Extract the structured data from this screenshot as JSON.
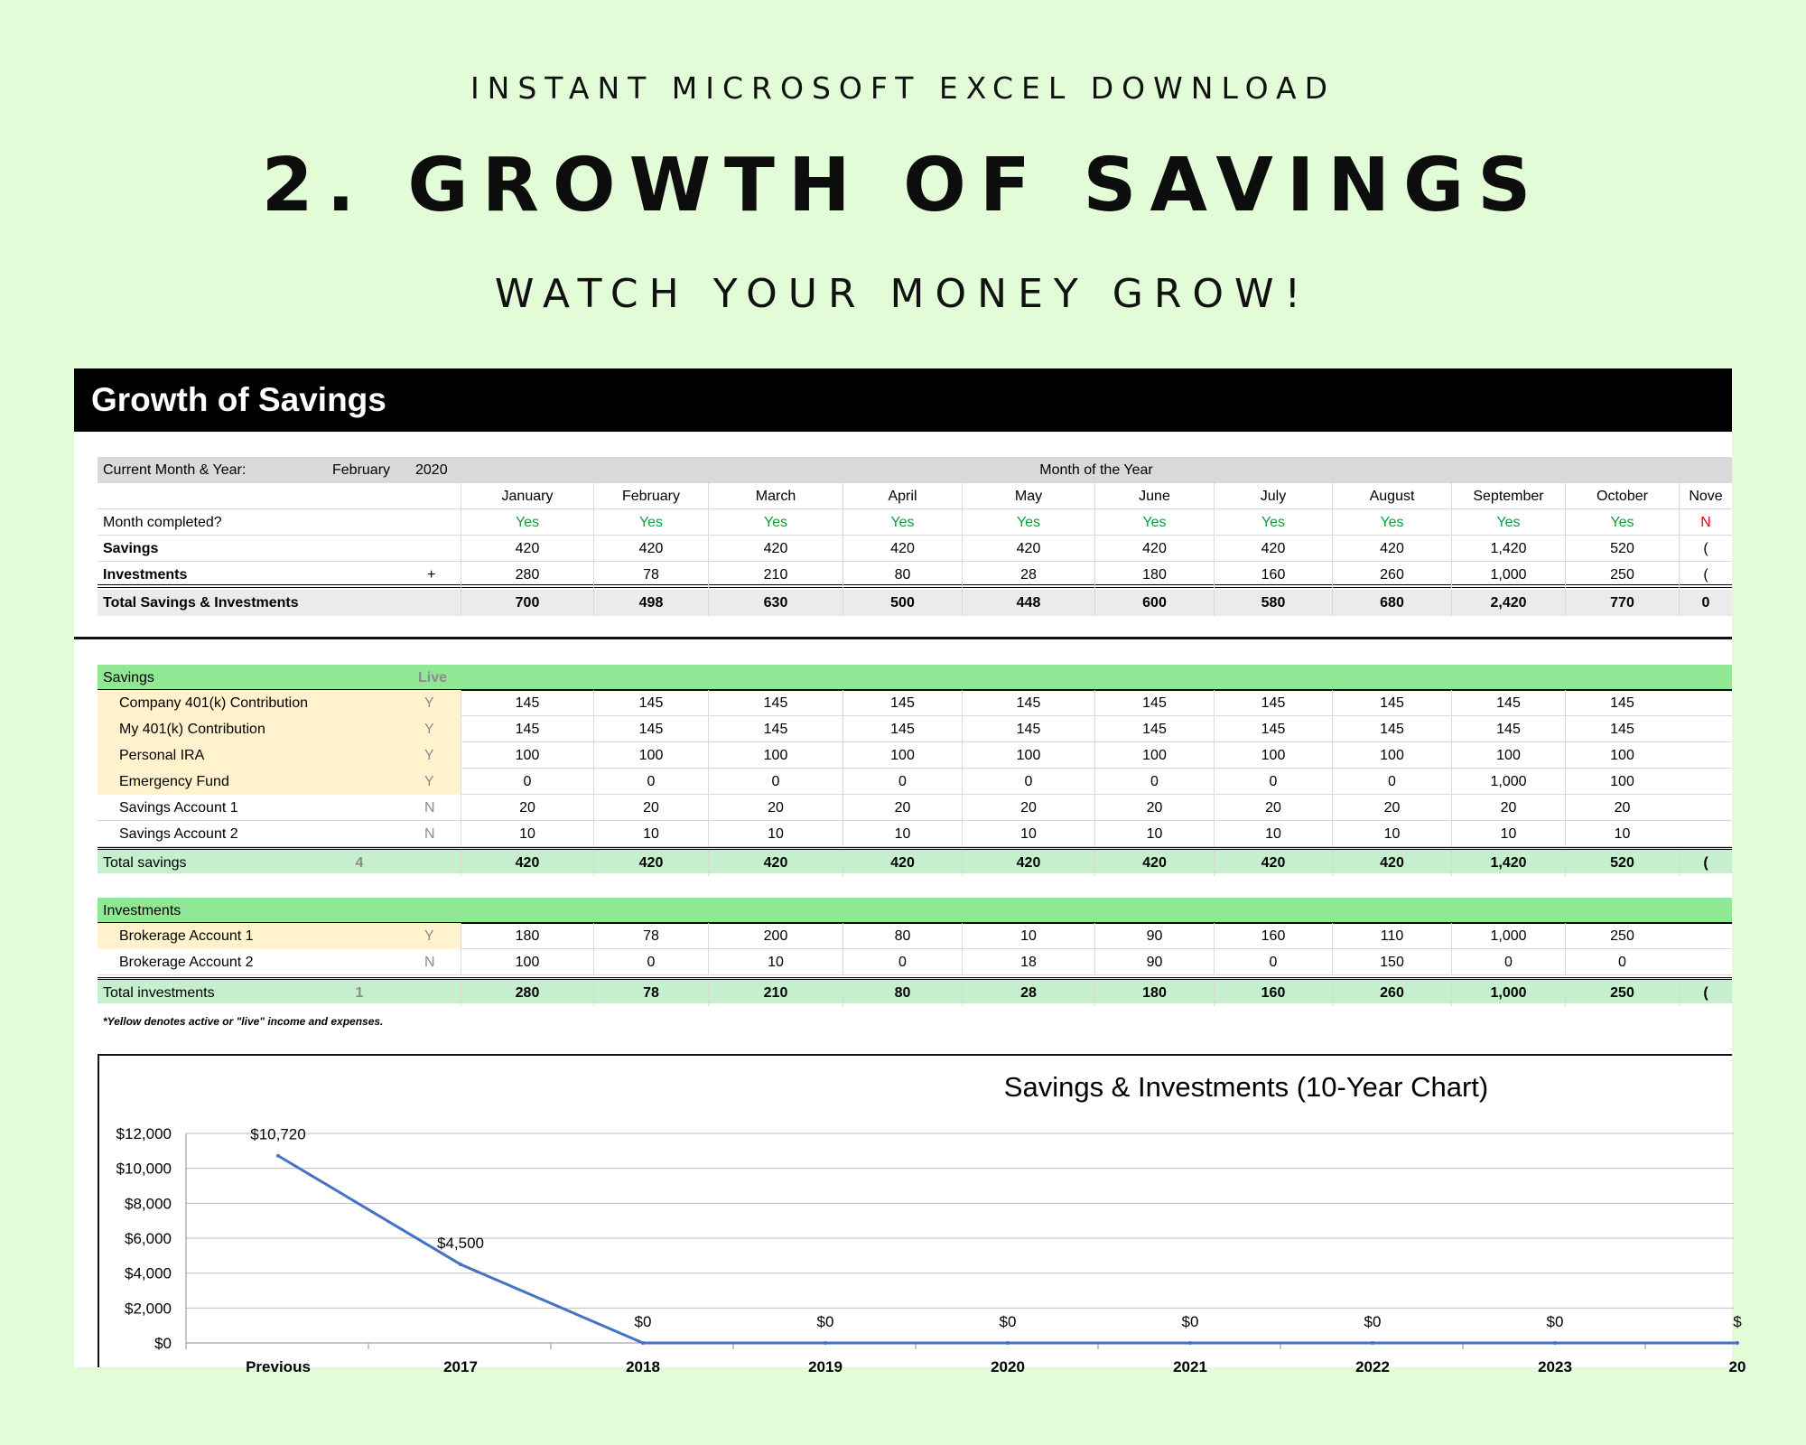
{
  "hero": {
    "kicker": "INSTANT MICROSOFT EXCEL DOWNLOAD",
    "title": "2. GROWTH OF SAVINGS",
    "subtitle": "WATCH YOUR MONEY GROW!"
  },
  "sheet": {
    "title": "Growth of Savings",
    "current_label": "Current Month & Year:",
    "current_month": "February",
    "current_year": "2020",
    "month_group_label": "Month of the Year",
    "months": [
      "January",
      "February",
      "March",
      "April",
      "May",
      "June",
      "July",
      "August",
      "September",
      "October",
      "Nove"
    ],
    "summary": {
      "completed_label": "Month completed?",
      "completed": [
        "Yes",
        "Yes",
        "Yes",
        "Yes",
        "Yes",
        "Yes",
        "Yes",
        "Yes",
        "Yes",
        "Yes",
        "N"
      ],
      "savings_label": "Savings",
      "savings": [
        "420",
        "420",
        "420",
        "420",
        "420",
        "420",
        "420",
        "420",
        "1,420",
        "520",
        "("
      ],
      "investments_label": "Investments",
      "investments_sign": "+",
      "investments": [
        "280",
        "78",
        "210",
        "80",
        "28",
        "180",
        "160",
        "260",
        "1,000",
        "250",
        "("
      ],
      "total_label": "Total Savings & Investments",
      "total": [
        "700",
        "498",
        "630",
        "500",
        "448",
        "600",
        "580",
        "680",
        "2,420",
        "770",
        "0"
      ]
    },
    "savings_section": {
      "label": "Savings",
      "live_label": "Live",
      "rows": [
        {
          "name": "Company 401(k) Contribution",
          "live": "Y",
          "values": [
            "145",
            "145",
            "145",
            "145",
            "145",
            "145",
            "145",
            "145",
            "145",
            "145"
          ]
        },
        {
          "name": "My 401(k) Contribution",
          "live": "Y",
          "values": [
            "145",
            "145",
            "145",
            "145",
            "145",
            "145",
            "145",
            "145",
            "145",
            "145"
          ]
        },
        {
          "name": "Personal IRA",
          "live": "Y",
          "values": [
            "100",
            "100",
            "100",
            "100",
            "100",
            "100",
            "100",
            "100",
            "100",
            "100"
          ]
        },
        {
          "name": "Emergency Fund",
          "live": "Y",
          "values": [
            "0",
            "0",
            "0",
            "0",
            "0",
            "0",
            "0",
            "0",
            "1,000",
            "100"
          ]
        },
        {
          "name": "Savings Account 1",
          "live": "N",
          "values": [
            "20",
            "20",
            "20",
            "20",
            "20",
            "20",
            "20",
            "20",
            "20",
            "20"
          ]
        },
        {
          "name": "Savings Account 2",
          "live": "N",
          "values": [
            "10",
            "10",
            "10",
            "10",
            "10",
            "10",
            "10",
            "10",
            "10",
            "10"
          ]
        }
      ],
      "total_label": "Total savings",
      "total_count": "4",
      "total": [
        "420",
        "420",
        "420",
        "420",
        "420",
        "420",
        "420",
        "420",
        "1,420",
        "520",
        "("
      ]
    },
    "investments_section": {
      "label": "Investments",
      "rows": [
        {
          "name": "Brokerage Account 1",
          "live": "Y",
          "values": [
            "180",
            "78",
            "200",
            "80",
            "10",
            "90",
            "160",
            "110",
            "1,000",
            "250"
          ]
        },
        {
          "name": "Brokerage Account 2",
          "live": "N",
          "values": [
            "100",
            "0",
            "10",
            "0",
            "18",
            "90",
            "0",
            "150",
            "0",
            "0"
          ]
        }
      ],
      "total_label": "Total investments",
      "total_count": "1",
      "total": [
        "280",
        "78",
        "210",
        "80",
        "28",
        "180",
        "160",
        "260",
        "1,000",
        "250",
        "("
      ]
    },
    "footnote": "*Yellow denotes active or \"live\" income and expenses."
  },
  "colors": {
    "background": "#e2fcd8",
    "band_green": "#90e895",
    "total_green": "#c6efce",
    "live_yellow": "#fff2cc",
    "yes_green": "#0f9d3a",
    "no_red": "#e60000",
    "line_blue": "#4472c4"
  },
  "chart_data": {
    "type": "line",
    "title": "Savings & Investments (10-Year Chart)",
    "categories": [
      "Previous",
      "2017",
      "2018",
      "2019",
      "2020",
      "2021",
      "2022",
      "2023",
      "20"
    ],
    "values": [
      10720,
      4500,
      0,
      0,
      0,
      0,
      0,
      0,
      0
    ],
    "data_labels": [
      "$10,720",
      "$4,500",
      "$0",
      "$0",
      "$0",
      "$0",
      "$0",
      "$0",
      "$"
    ],
    "y_ticks": [
      "$0",
      "$2,000",
      "$4,000",
      "$6,000",
      "$8,000",
      "$10,000",
      "$12,000"
    ],
    "ylim": [
      0,
      12000
    ],
    "grid": true,
    "legend": "none"
  }
}
